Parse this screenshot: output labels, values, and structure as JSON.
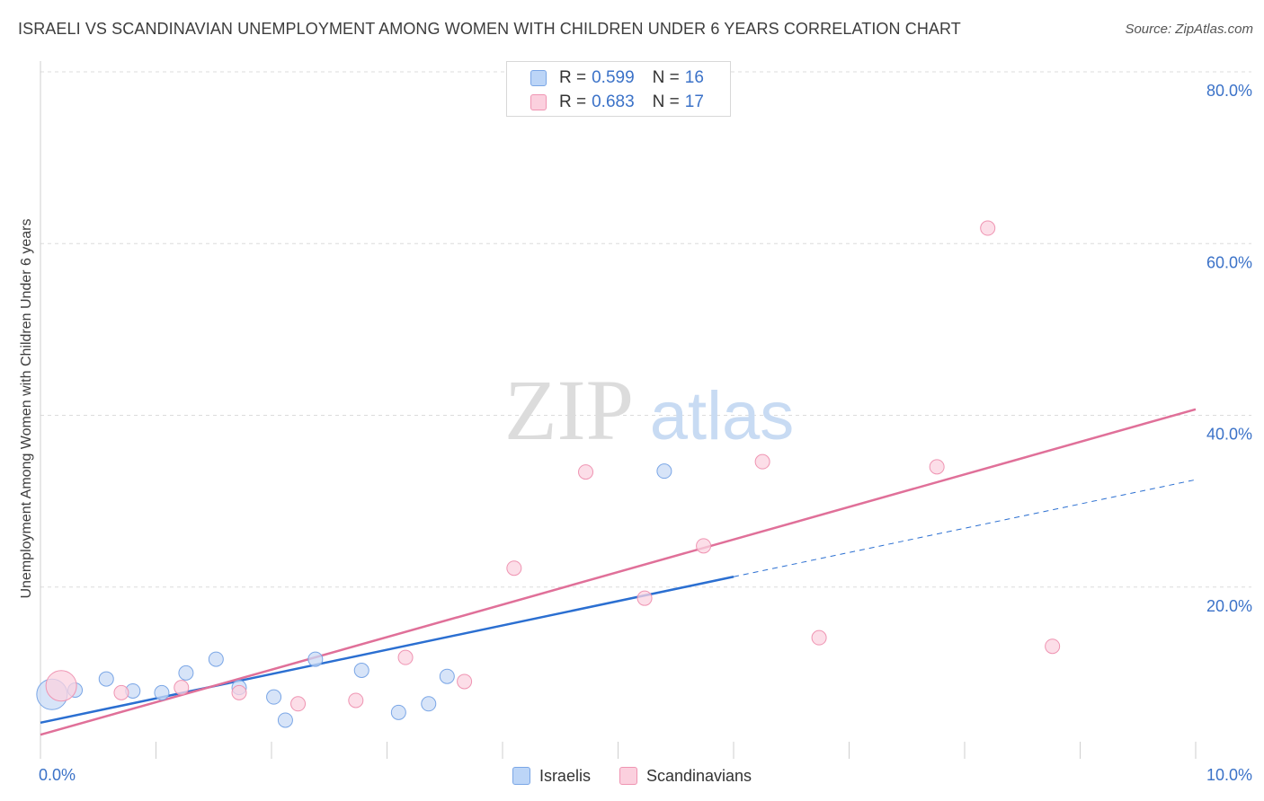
{
  "title": "ISRAELI VS SCANDINAVIAN UNEMPLOYMENT AMONG WOMEN WITH CHILDREN UNDER 6 YEARS CORRELATION CHART",
  "source": "Source: ZipAtlas.com",
  "watermark": {
    "zip": "ZIP",
    "atlas": "atlas"
  },
  "legend": {
    "rows": [
      {
        "r_label": "R =",
        "r_value": "0.599",
        "n_label": "N =",
        "n_value": "16",
        "color": "#a9c7f3",
        "border": "#7aa6e6"
      },
      {
        "r_label": "R =",
        "r_value": "0.683",
        "n_label": "N =",
        "n_value": "17",
        "color": "#f7bfd0",
        "border": "#ef94b2"
      }
    ]
  },
  "bottom_legend": [
    {
      "label": "Israelis",
      "color": "#bcd5f7",
      "border": "#7aa6e6"
    },
    {
      "label": "Scandinavians",
      "color": "#fbd0de",
      "border": "#ef94b2"
    }
  ],
  "chart_data": {
    "type": "scatter",
    "title": "ISRAELI VS SCANDINAVIAN UNEMPLOYMENT AMONG WOMEN WITH CHILDREN UNDER 6 YEARS CORRELATION CHART",
    "xlabel": "",
    "ylabel": "Unemployment Among Women with Children Under 6 years",
    "xlim": [
      0,
      10
    ],
    "ylim": [
      0,
      80
    ],
    "x_ticks": [
      0,
      1,
      2,
      3,
      4,
      5,
      6,
      7,
      8,
      9,
      10
    ],
    "x_tick_labels": [
      {
        "x": 0,
        "label": "0.0%"
      },
      {
        "x": 10,
        "label": "10.0%"
      }
    ],
    "y_ticks": [
      20,
      40,
      60,
      80
    ],
    "y_tick_labels": [
      "20.0%",
      "40.0%",
      "60.0%",
      "80.0%"
    ],
    "grid": "horizontal dashed",
    "legend_position": "top-center",
    "series": [
      {
        "name": "Israelis",
        "color": "#7aa6e6",
        "fill": "#c9dbf6",
        "line_color": "#2b6fd1",
        "points": [
          {
            "x": 0.1,
            "y": 7.5,
            "size": "large"
          },
          {
            "x": 0.3,
            "y": 8.0
          },
          {
            "x": 0.57,
            "y": 9.3
          },
          {
            "x": 0.8,
            "y": 7.9
          },
          {
            "x": 1.05,
            "y": 7.7
          },
          {
            "x": 1.26,
            "y": 10.0
          },
          {
            "x": 1.52,
            "y": 11.6
          },
          {
            "x": 1.72,
            "y": 8.3
          },
          {
            "x": 2.02,
            "y": 7.2
          },
          {
            "x": 2.12,
            "y": 4.5
          },
          {
            "x": 2.38,
            "y": 11.6
          },
          {
            "x": 2.78,
            "y": 10.3
          },
          {
            "x": 3.1,
            "y": 5.4
          },
          {
            "x": 3.36,
            "y": 6.4
          },
          {
            "x": 3.52,
            "y": 9.6
          },
          {
            "x": 5.4,
            "y": 33.5
          }
        ],
        "trend": {
          "x0": 0,
          "y0": 4.2,
          "x1": 6.0,
          "y1": 21.2,
          "dashed_to_x": 10.0,
          "dashed_to_y": 32.5
        }
      },
      {
        "name": "Scandinavians",
        "color": "#ef94b2",
        "fill": "#fbd3e0",
        "line_color": "#e07099",
        "points": [
          {
            "x": 0.18,
            "y": 8.5,
            "size": "large"
          },
          {
            "x": 0.7,
            "y": 7.7
          },
          {
            "x": 1.22,
            "y": 8.3
          },
          {
            "x": 1.72,
            "y": 7.7
          },
          {
            "x": 2.23,
            "y": 6.4
          },
          {
            "x": 2.73,
            "y": 6.8
          },
          {
            "x": 3.16,
            "y": 11.8
          },
          {
            "x": 3.67,
            "y": 9.0
          },
          {
            "x": 4.1,
            "y": 22.2
          },
          {
            "x": 4.72,
            "y": 33.4
          },
          {
            "x": 5.23,
            "y": 18.7
          },
          {
            "x": 5.74,
            "y": 24.8
          },
          {
            "x": 6.25,
            "y": 34.6
          },
          {
            "x": 6.74,
            "y": 14.1
          },
          {
            "x": 7.76,
            "y": 34.0
          },
          {
            "x": 8.2,
            "y": 61.8
          },
          {
            "x": 8.76,
            "y": 13.1
          }
        ],
        "trend": {
          "x0": 0,
          "y0": 2.8,
          "x1": 10.0,
          "y1": 40.7
        }
      }
    ]
  }
}
